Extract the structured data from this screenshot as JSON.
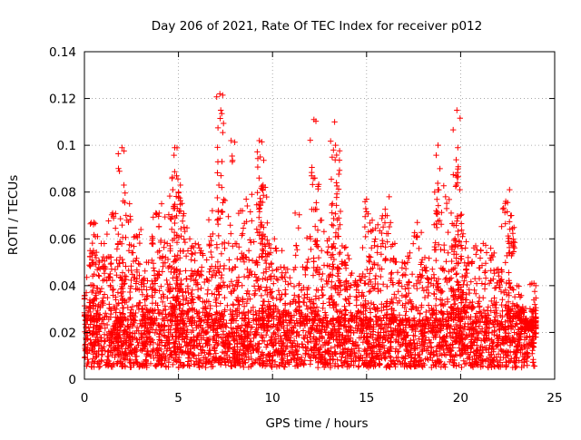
{
  "chart_data": {
    "type": "scatter",
    "title": "Day 206 of 2021, Rate Of TEC Index for receiver p012",
    "xlabel": "GPS time / hours",
    "ylabel": "ROTI / TECUs",
    "xlim": [
      0,
      25
    ],
    "ylim": [
      0,
      0.14
    ],
    "xticks": [
      0,
      5,
      10,
      15,
      20,
      25
    ],
    "yticks": [
      0,
      0.02,
      0.04,
      0.06,
      0.08,
      0.1,
      0.12,
      0.14
    ],
    "xtick_labels": [
      "0",
      "5",
      "10",
      "15",
      "20",
      "25"
    ],
    "ytick_labels": [
      "0",
      "0.02",
      "0.04",
      "0.06",
      "0.08",
      "0.1",
      "0.12",
      "0.14"
    ],
    "grid": true,
    "marker": "+",
    "color": "#ff0000",
    "x_range": [
      0,
      24
    ],
    "dense_band": [
      0.005,
      0.025
    ],
    "series": [
      {
        "x": [
          0.1,
          0.3,
          0.5,
          0.7,
          0.9,
          1.2,
          1.5,
          1.8,
          2.0,
          2.1,
          2.4,
          2.7,
          3.0,
          3.3,
          3.6,
          3.8,
          4.1,
          4.4,
          4.7,
          4.8,
          4.9,
          5.0,
          5.1,
          5.3,
          5.6,
          5.9,
          6.2,
          6.5,
          6.8,
          7.2,
          7.25,
          7.3,
          7.8,
          8.0,
          8.3,
          8.6,
          8.9,
          9.3,
          9.35,
          9.5,
          9.6,
          9.8,
          10.1,
          10.5,
          10.8,
          11.2,
          11.6,
          12.0,
          12.2,
          12.25,
          12.6,
          13.0,
          13.3,
          13.35,
          13.4,
          13.7,
          14.0,
          14.4,
          14.8,
          15.0,
          15.3,
          15.6,
          16.0,
          16.2,
          16.5,
          16.9,
          17.3,
          17.7,
          18.1,
          18.5,
          18.8,
          18.9,
          19.2,
          19.5,
          19.7,
          19.8,
          19.85,
          20.0,
          20.1,
          20.4,
          20.8,
          21.2,
          21.6,
          22.0,
          22.4,
          22.6,
          22.7,
          23.0,
          23.3,
          23.6,
          23.9,
          24.0
        ],
        "y": [
          0.037,
          0.055,
          0.067,
          0.061,
          0.058,
          0.062,
          0.071,
          0.062,
          0.099,
          0.083,
          0.075,
          0.061,
          0.064,
          0.05,
          0.061,
          0.071,
          0.075,
          0.058,
          0.081,
          0.099,
          0.087,
          0.08,
          0.083,
          0.065,
          0.06,
          0.058,
          0.055,
          0.051,
          0.072,
          0.122,
          0.115,
          0.082,
          0.102,
          0.048,
          0.072,
          0.077,
          0.079,
          0.102,
          0.095,
          0.083,
          0.061,
          0.058,
          0.06,
          0.055,
          0.047,
          0.071,
          0.048,
          0.061,
          0.111,
          0.086,
          0.068,
          0.06,
          0.11,
          0.1,
          0.084,
          0.057,
          0.053,
          0.042,
          0.045,
          0.077,
          0.068,
          0.066,
          0.07,
          0.078,
          0.058,
          0.05,
          0.054,
          0.067,
          0.052,
          0.047,
          0.1,
          0.09,
          0.078,
          0.071,
          0.06,
          0.115,
          0.099,
          0.07,
          0.061,
          0.052,
          0.057,
          0.058,
          0.056,
          0.047,
          0.076,
          0.081,
          0.07,
          0.04,
          0.031,
          0.021,
          0.041,
          0.018
        ]
      }
    ]
  }
}
